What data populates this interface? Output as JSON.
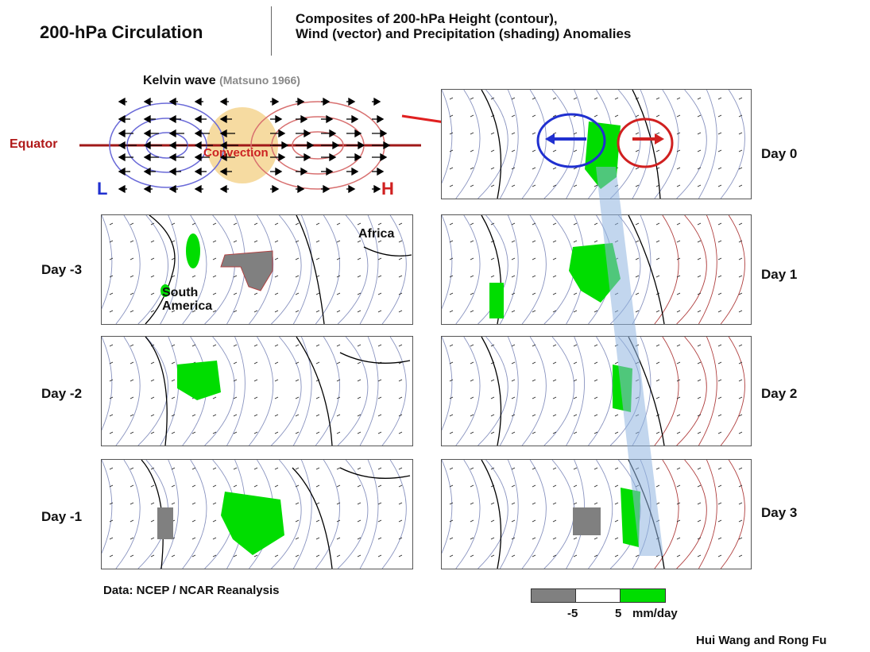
{
  "header": {
    "title": "200-hPa Circulation",
    "subtitle_line1": "Composites of 200-hPa Height (contour),",
    "subtitle_line2": "Wind (vector) and Precipitation (shading) Anomalies"
  },
  "kelvin": {
    "title": "Kelvin wave",
    "citation": "(Matsuno 1966)",
    "equator": "Equator",
    "convection": "Convection",
    "low": "L",
    "high": "H"
  },
  "panels": {
    "left": [
      "Day -3",
      "Day -2",
      "Day -1"
    ],
    "right": [
      "Day 0",
      "Day 1",
      "Day 2",
      "Day 3"
    ]
  },
  "map_labels": {
    "africa": "Africa",
    "south": "South",
    "america": "America"
  },
  "data_source": "Data: NCEP / NCAR Reanalysis",
  "legend": {
    "min_label": "-5",
    "max_label": "5",
    "unit": "mm/day"
  },
  "credit": "Hui Wang and Rong Fu",
  "colors": {
    "low": "#2030d0",
    "high": "#d02020",
    "convection": "#f5d590",
    "precip_pos": "#00dd00",
    "precip_neg": "#808080",
    "contour_neg": "#8a94c0",
    "contour_pos": "#b04040"
  },
  "icons": [
    "arrow-icon",
    "contour-map-icon"
  ]
}
